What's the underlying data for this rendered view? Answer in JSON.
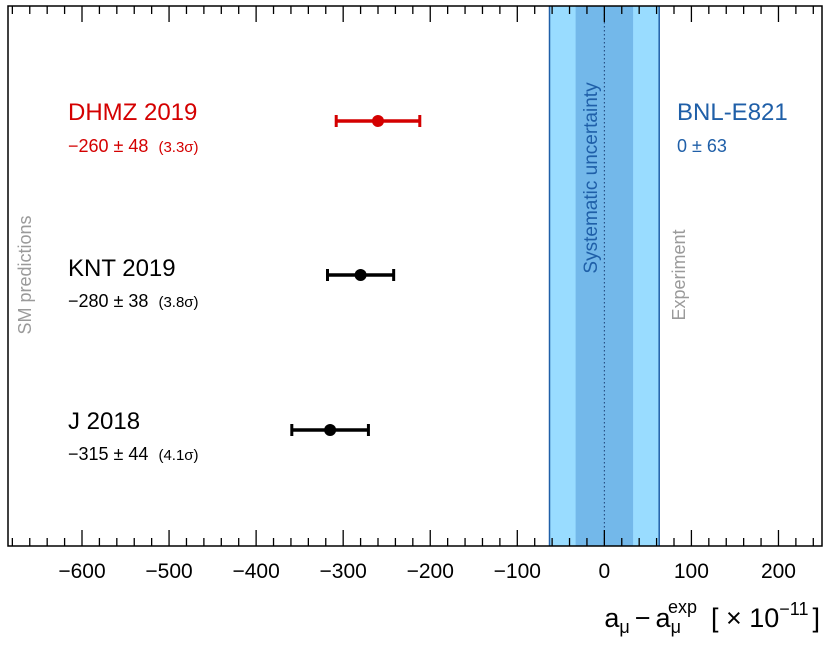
{
  "chart_data": {
    "type": "scatter",
    "title": "",
    "ylabel": "",
    "xlabel": {
      "base": "a",
      "sub1": "μ",
      "minus": "−",
      "sub2": "μ",
      "sup": "exp",
      "unit_open": "[ × 10",
      "unit_exp": "−11",
      "unit_close": "]"
    },
    "xlim": [
      -685,
      250
    ],
    "major_ticks": [
      -600,
      -500,
      -400,
      -300,
      -200,
      -100,
      0,
      100,
      200
    ],
    "tick_labels": [
      "−600",
      "−500",
      "−400",
      "−300",
      "−200",
      "−100",
      "0",
      "100",
      "200"
    ],
    "minor_tick_step": 20,
    "points": [
      {
        "name": "DHMZ 2019",
        "value": -260,
        "error": 48,
        "value_text": "−260 ± 48",
        "sigma_text": "(3.3σ)",
        "color": "#d40000"
      },
      {
        "name": "KNT 2019",
        "value": -280,
        "error": 38,
        "value_text": "−280 ± 38",
        "sigma_text": "(3.8σ)",
        "color": "#000000"
      },
      {
        "name": "J 2018",
        "value": -315,
        "error": 44,
        "value_text": "−315 ± 44",
        "sigma_text": "(4.1σ)",
        "color": "#000000"
      }
    ],
    "experiment": {
      "name": "BNL-E821",
      "value": 0,
      "error": 63,
      "value_text": "0 ± 63",
      "systematic": 33,
      "color": "#1f5fa8",
      "band_outer_color": "#99dcff",
      "band_inner_color": "#73b8ea"
    },
    "side_labels": {
      "left": "SM predictions",
      "right": "Experiment",
      "band": "Systematic uncertainty"
    },
    "label_gray": "#9a9a9a"
  }
}
